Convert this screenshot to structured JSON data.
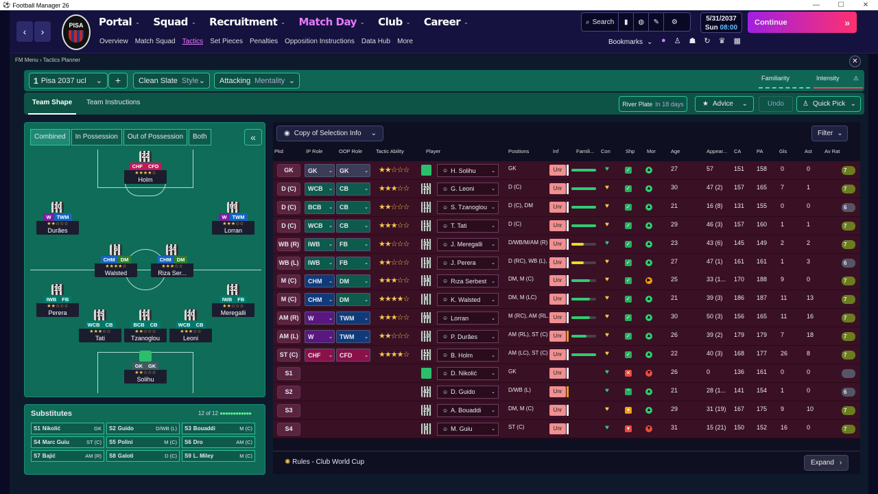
{
  "window": {
    "title": "Football Manager 26",
    "min": "—",
    "max": "☐",
    "close": "✕"
  },
  "nav": {
    "back": "‹",
    "fwd": "›",
    "club_abbr": "PISA",
    "menus": [
      "Portal",
      "Squad",
      "Recruitment",
      "Match Day",
      "Club",
      "Career"
    ],
    "active_menu": "Match Day",
    "submenu": [
      "Overview",
      "Match Squad",
      "Tactics",
      "Set Pieces",
      "Penalties",
      "Opposition Instructions",
      "Data Hub",
      "More"
    ],
    "active_sub": "Tactics",
    "search": "Search",
    "date": "5/31/2037",
    "day": "Sun",
    "time": "08:00",
    "continue": "Continue",
    "bookmarks": "Bookmarks"
  },
  "breadcrumb": {
    "root": "FM Menu",
    "page": "Tactics Planner"
  },
  "tactic": {
    "num": "1",
    "name": "Pisa 2037 ucl",
    "plus": "+",
    "style_val": "Clean Slate",
    "style_lbl": "Style",
    "mentality_val": "Attacking",
    "mentality_lbl": "Mentality",
    "familiarity": "Familiarity",
    "intensity": "Intensity"
  },
  "tabs": {
    "shape": "Team Shape",
    "instructions": "Team Instructions"
  },
  "opponent": {
    "name": "River Plate",
    "when": "In 18 days"
  },
  "buttons": {
    "advice": "Advice",
    "undo": "Undo",
    "quick_pick": "Quick Pick",
    "copy": "Copy of Selection Info",
    "filter": "Filter",
    "expand": "Expand",
    "collapse": "«"
  },
  "pitch_tabs": [
    "Combined",
    "In Possession",
    "Out of Possession",
    "Both"
  ],
  "pitch_players": [
    {
      "num": "22",
      "r1": "CHF",
      "r2": "CFD",
      "stars": "★★★★☆",
      "name": "Holm",
      "c1": "#c2185b",
      "c2": "#c2185b"
    },
    {
      "num": "10",
      "r1": "W",
      "r2": "TWM",
      "stars": "★★☆☆☆",
      "name": "Durães",
      "c1": "#7b1fa2",
      "c2": "#1565c0"
    },
    {
      "num": "99",
      "r1": "W",
      "r2": "TWM",
      "stars": "★★★☆☆",
      "name": "Lorran",
      "c1": "#7b1fa2",
      "c2": "#1565c0"
    },
    {
      "num": "6",
      "r1": "CHM",
      "r2": "DM",
      "stars": "★★★★☆",
      "name": "Walsted",
      "c1": "#1565c0",
      "c2": "#2e7d32"
    },
    {
      "num": "34",
      "r1": "CHM",
      "r2": "DM",
      "stars": "★★★☆☆",
      "name": "Riza Ser...",
      "c1": "#1565c0",
      "c2": "#2e7d32"
    },
    {
      "num": "19",
      "r1": "IWB",
      "r2": "FB",
      "stars": "★★☆☆☆",
      "name": "Perera",
      "c1": "#00796b",
      "c2": "#00796b"
    },
    {
      "num": "32",
      "r1": "IWB",
      "r2": "FB",
      "stars": "★★☆☆☆",
      "name": "Meregalli",
      "c1": "#00796b",
      "c2": "#00796b"
    },
    {
      "num": "15",
      "r1": "WCB",
      "r2": "CB",
      "stars": "★★★☆☆",
      "name": "Tati",
      "c1": "#00796b",
      "c2": "#00796b"
    },
    {
      "num": "12",
      "r1": "BCB",
      "r2": "CB",
      "stars": "★★☆☆☆",
      "name": "Tzanoglou",
      "c1": "#00796b",
      "c2": "#00796b"
    },
    {
      "num": "20",
      "r1": "WCB",
      "r2": "CB",
      "stars": "★★★☆☆",
      "name": "Leoni",
      "c1": "#00796b",
      "c2": "#00796b"
    },
    {
      "num": "",
      "r1": "GK",
      "r2": "GK",
      "stars": "★★☆☆☆",
      "name": "Solihu",
      "c1": "#455a64",
      "c2": "#455a64"
    }
  ],
  "subs": {
    "title": "Substitutes",
    "count": "12 of 12",
    "dots": "●●●●●●●●●●●●",
    "items": [
      {
        "k": "S1",
        "n": "Nikolić",
        "p": "GK"
      },
      {
        "k": "S2",
        "n": "Guido",
        "p": "D/WB (L)"
      },
      {
        "k": "S3",
        "n": "Bouaddi",
        "p": "M (C)"
      },
      {
        "k": "S4",
        "n": "Marc Guiu",
        "p": "ST (C)"
      },
      {
        "k": "S5",
        "n": "Polini",
        "p": "M (C)"
      },
      {
        "k": "S6",
        "n": "Dro",
        "p": "AM (C)"
      },
      {
        "k": "S7",
        "n": "Bajić",
        "p": "AM (R)"
      },
      {
        "k": "S8",
        "n": "Galoti",
        "p": "D (C)"
      },
      {
        "k": "S9",
        "n": "L. Miley",
        "p": "M (C)"
      }
    ]
  },
  "cols": [
    "Pkd",
    "IP Role",
    "OOP Role",
    "Tactic Ability",
    "Player",
    "Positions",
    "Inf",
    "Famili...",
    "Con",
    "Shp",
    "Mor",
    "Age",
    "Appear...",
    "CA",
    "PA",
    "Gls",
    "Ast",
    "Av Rat"
  ],
  "rows": [
    {
      "pos": "GK",
      "ip": "GK",
      "oop": "GK",
      "ipc": "#3a3d55",
      "oopc": "#3a3d55",
      "st": "★★☆☆☆",
      "num": "",
      "gk": true,
      "name": "H. Solihu",
      "posn": "GK",
      "fam": 1.0,
      "famc": "#2ecc71",
      "ub": "#fff",
      "shp": "✓",
      "shpc": "#27ae60",
      "mor": "▲",
      "morc": "#2ecc71",
      "age": "27",
      "app": "57",
      "ca": "151",
      "pa": "158",
      "gls": "0",
      "ast": "0",
      "av": "7"
    },
    {
      "pos": "D (C)",
      "ip": "WCB",
      "oop": "CB",
      "ipc": "#0c5b4c",
      "oopc": "#0c5b4c",
      "st": "★★★☆☆",
      "num": "20",
      "name": "G. Leoni",
      "posn": "D (C)",
      "fam": 1.0,
      "famc": "#2ecc71",
      "ub": "#fff",
      "shp": "✓",
      "shpc": "#27ae60",
      "mor": "▲",
      "morc": "#2ecc71",
      "age": "30",
      "app": "47 (2)",
      "ca": "157",
      "pa": "165",
      "gls": "7",
      "ast": "1",
      "av": "7"
    },
    {
      "pos": "D (C)",
      "ip": "BCB",
      "oop": "CB",
      "ipc": "#0c5b4c",
      "oopc": "#0c5b4c",
      "st": "★★☆☆☆",
      "num": "12",
      "name": "S. Tzanoglou",
      "posn": "D (C), DM",
      "fam": 1.0,
      "famc": "#2ecc71",
      "ub": "#fff",
      "shp": "✓",
      "shpc": "#27ae60",
      "mor": "▲",
      "morc": "#2ecc71",
      "age": "21",
      "app": "16 (8)",
      "ca": "131",
      "pa": "155",
      "gls": "0",
      "ast": "0",
      "av": "6"
    },
    {
      "pos": "D (C)",
      "ip": "WCB",
      "oop": "CB",
      "ipc": "#0c5b4c",
      "oopc": "#0c5b4c",
      "st": "★★★☆☆",
      "num": "15",
      "name": "T. Tati",
      "posn": "D (C)",
      "fam": 1.0,
      "famc": "#2ecc71",
      "ub": "#fff",
      "shp": "✓",
      "shpc": "#27ae60",
      "mor": "▲",
      "morc": "#2ecc71",
      "age": "29",
      "app": "46 (3)",
      "ca": "157",
      "pa": "160",
      "gls": "1",
      "ast": "1",
      "av": "7"
    },
    {
      "pos": "WB (R)",
      "ip": "IWB",
      "oop": "FB",
      "ipc": "#0c5b4c",
      "oopc": "#0c5b4c",
      "st": "★★☆☆☆",
      "num": "32",
      "name": "J. Meregalli",
      "posn": "D/WB/M/AM (R)",
      "fam": 0.5,
      "famc": "#e6e01e",
      "ub": "#fff",
      "shp": "✓",
      "shpc": "#27ae60",
      "mor": "▲",
      "morc": "#2ecc71",
      "age": "23",
      "app": "43 (6)",
      "ca": "145",
      "pa": "149",
      "gls": "2",
      "ast": "2",
      "av": "7"
    },
    {
      "pos": "WB (L)",
      "ip": "IWB",
      "oop": "FB",
      "ipc": "#0c5b4c",
      "oopc": "#0c5b4c",
      "st": "★★☆☆☆",
      "num": "19",
      "name": "J. Perera",
      "posn": "D (RC), WB (L), ...",
      "fam": 0.5,
      "famc": "#e6e01e",
      "ub": "#fff",
      "shp": "✓",
      "shpc": "#27ae60",
      "mor": "▲",
      "morc": "#2ecc71",
      "age": "27",
      "app": "47 (1)",
      "ca": "161",
      "pa": "161",
      "gls": "1",
      "ast": "3",
      "av": "6"
    },
    {
      "pos": "M (C)",
      "ip": "CHM",
      "oop": "DM",
      "ipc": "#0f3b7a",
      "oopc": "#0c5b4c",
      "st": "★★★☆☆",
      "num": "34",
      "name": "Rıza Serbest",
      "posn": "DM, M (C)",
      "fam": 0.75,
      "famc": "#2ecc71",
      "ub": "#fff",
      "shp": "✓",
      "shpc": "#27ae60",
      "mor": "▶",
      "morc": "#f39c12",
      "age": "25",
      "app": "33 (1...",
      "ca": "170",
      "pa": "188",
      "gls": "9",
      "ast": "0",
      "av": "7"
    },
    {
      "pos": "M (C)",
      "ip": "CHM",
      "oop": "DM",
      "ipc": "#0f3b7a",
      "oopc": "#0c5b4c",
      "st": "★★★★☆",
      "num": "6",
      "name": "K. Walsted",
      "posn": "DM, M (LC)",
      "fam": 0.75,
      "famc": "#2ecc71",
      "ub": "#fff",
      "shp": "✓",
      "shpc": "#27ae60",
      "mor": "▲",
      "morc": "#2ecc71",
      "age": "21",
      "app": "39 (3)",
      "ca": "186",
      "pa": "187",
      "gls": "11",
      "ast": "13",
      "av": "7"
    },
    {
      "pos": "AM (R)",
      "ip": "W",
      "oop": "TWM",
      "ipc": "#5a1780",
      "oopc": "#0f3b7a",
      "st": "★★★☆☆",
      "num": "99",
      "name": "Lorran",
      "posn": "M (RC), AM (RL...",
      "fam": 0.75,
      "famc": "#2ecc71",
      "ub": "#fff",
      "shp": "✓",
      "shpc": "#27ae60",
      "mor": "▲",
      "morc": "#2ecc71",
      "age": "30",
      "app": "50 (3)",
      "ca": "156",
      "pa": "165",
      "gls": "11",
      "ast": "16",
      "av": "7"
    },
    {
      "pos": "AM (L)",
      "ip": "W",
      "oop": "TWM",
      "ipc": "#5a1780",
      "oopc": "#0f3b7a",
      "st": "★★☆☆☆",
      "num": "10",
      "name": "P. Durães",
      "posn": "AM (RL), ST (C)",
      "fam": 0.6,
      "famc": "#2ecc71",
      "ub": "#f39c12",
      "shp": "✓",
      "shpc": "#27ae60",
      "mor": "▲",
      "morc": "#2ecc71",
      "age": "26",
      "app": "39 (2)",
      "ca": "179",
      "pa": "179",
      "gls": "7",
      "ast": "18",
      "av": "7"
    },
    {
      "pos": "ST (C)",
      "ip": "CHF",
      "oop": "CFD",
      "ipc": "#8a1148",
      "oopc": "#8a1148",
      "st": "★★★★☆",
      "num": "22",
      "name": "B. Holm",
      "posn": "AM (LC), ST (C)",
      "fam": 1.0,
      "famc": "#2ecc71",
      "ub": "#fff",
      "shp": "✓",
      "shpc": "#27ae60",
      "mor": "▲",
      "morc": "#2ecc71",
      "age": "22",
      "app": "40 (3)",
      "ca": "168",
      "pa": "177",
      "gls": "26",
      "ast": "8",
      "av": "7"
    },
    {
      "pos": "S1",
      "ip": "",
      "oop": "",
      "ipc": "",
      "oopc": "",
      "st": "",
      "num": "",
      "gk": true,
      "name": "D. Nikolić",
      "posn": "GK",
      "fam": 0,
      "famc": "",
      "ub": "#fff",
      "shp": "✕",
      "shpc": "#e74c3c",
      "mor": "▼",
      "morc": "#e74c3c",
      "age": "26",
      "app": "0",
      "ca": "136",
      "pa": "161",
      "gls": "0",
      "ast": "0",
      "av": ""
    },
    {
      "pos": "S2",
      "ip": "",
      "oop": "",
      "ipc": "",
      "oopc": "",
      "st": "",
      "num": "42",
      "name": "D. Guido",
      "posn": "D/WB (L)",
      "fam": 0,
      "famc": "",
      "ub": "#f39c12",
      "shp": "⌃",
      "shpc": "#27ae60",
      "mor": "▲",
      "morc": "#2ecc71",
      "age": "21",
      "app": "28 (1...",
      "ca": "141",
      "pa": "154",
      "gls": "1",
      "ast": "0",
      "av": "6"
    },
    {
      "pos": "S3",
      "ip": "",
      "oop": "",
      "ipc": "",
      "oopc": "",
      "st": "",
      "num": "29",
      "name": "A. Bouaddi",
      "posn": "DM, M (C)",
      "fam": 0,
      "famc": "",
      "ub": "#fff",
      "shp": "▾",
      "shpc": "#f39c12",
      "mor": "▲",
      "morc": "#2ecc71",
      "age": "29",
      "app": "31 (19)",
      "ca": "167",
      "pa": "175",
      "gls": "9",
      "ast": "10",
      "av": "7"
    },
    {
      "pos": "S4",
      "ip": "",
      "oop": "",
      "ipc": "",
      "oopc": "",
      "st": "",
      "num": "9",
      "name": "M. Guiu",
      "posn": "ST (C)",
      "fam": 0,
      "famc": "",
      "ub": "#fff",
      "shp": "▾",
      "shpc": "#e74c3c",
      "mor": "▼",
      "morc": "#e74c3c",
      "age": "31",
      "app": "15 (21)",
      "ca": "150",
      "pa": "152",
      "gls": "16",
      "ast": "0",
      "av": "7"
    }
  ],
  "unr": "Unr",
  "rules": "Rules - Club World Cup"
}
